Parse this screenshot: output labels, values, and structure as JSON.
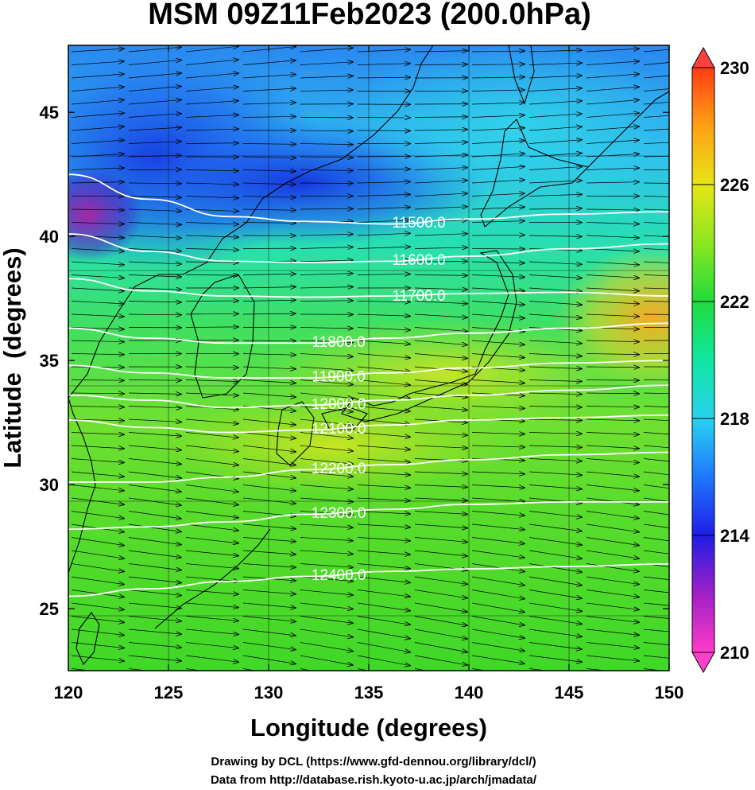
{
  "title": "MSM 09Z11Feb2023 (200.0hPa)",
  "credits": [
    "Drawing by DCL (https://www.gfd-dennou.org/library/dcl/)",
    "Data from http://database.rish.kyoto-u.ac.jp/arch/jmadata/"
  ],
  "chart_data": {
    "type": "heatmap",
    "title": "MSM 09Z11Feb2023 (200.0hPa)",
    "xlabel": "Longitude (degrees)",
    "ylabel": "Latitude  (degrees)",
    "xlim": [
      120,
      150
    ],
    "ylim": [
      22.5,
      47.7
    ],
    "xticks": [
      120,
      125,
      130,
      135,
      140,
      145,
      150
    ],
    "yticks": [
      25,
      30,
      35,
      40,
      45
    ],
    "colorbar": {
      "min": 210,
      "max": 230,
      "ticks": [
        210,
        214,
        218,
        222,
        226,
        230
      ],
      "colors": [
        "#ff3cc8",
        "#a020c8",
        "#1e1ee6",
        "#1e78ff",
        "#28d2f0",
        "#10e6a0",
        "#20dc3c",
        "#8ce61e",
        "#e6e614",
        "#ffa014",
        "#ff3c14"
      ]
    },
    "contours": [
      {
        "label": "11500.0",
        "lat": [
          42.5,
          41.5,
          40.8,
          40.6,
          40.5,
          40.7,
          40.9,
          41.0
        ]
      },
      {
        "label": "11600.0",
        "lat": [
          40.1,
          39.4,
          39.0,
          38.95,
          39.0,
          39.2,
          39.5,
          39.7
        ]
      },
      {
        "label": "11700.0",
        "lat": [
          38.3,
          37.8,
          37.6,
          37.55,
          37.6,
          37.7,
          37.75,
          37.6
        ]
      },
      {
        "label": "11800.0",
        "lat": [
          36.3,
          35.9,
          35.7,
          35.7,
          35.9,
          36.1,
          36.3,
          36.5
        ]
      },
      {
        "label": "11900.0",
        "lat": [
          34.8,
          34.5,
          34.3,
          34.3,
          34.5,
          34.7,
          34.9,
          35.0
        ]
      },
      {
        "label": "12000.0",
        "lat": [
          33.6,
          33.4,
          33.1,
          33.2,
          33.4,
          33.6,
          33.8,
          34.0
        ]
      },
      {
        "label": "12100.0",
        "lat": [
          32.6,
          32.3,
          32.1,
          32.2,
          32.4,
          32.6,
          32.7,
          32.8
        ]
      },
      {
        "label": "12200.0",
        "lat": [
          30.1,
          30.1,
          30.3,
          30.6,
          30.8,
          31.0,
          31.2,
          31.3
        ]
      },
      {
        "label": "12300.0",
        "lat": [
          28.2,
          28.3,
          28.5,
          28.8,
          29.0,
          29.2,
          29.3,
          29.3
        ]
      },
      {
        "label": "12400.0",
        "lat": [
          25.5,
          25.8,
          26.1,
          26.3,
          26.5,
          26.6,
          26.7,
          26.8
        ]
      }
    ],
    "contour_lons": [
      120,
      124,
      128,
      132,
      136,
      140,
      145,
      150
    ],
    "vectors": "wind arrows, predominantly westerly (eastward), slightly northeastward in the south"
  }
}
